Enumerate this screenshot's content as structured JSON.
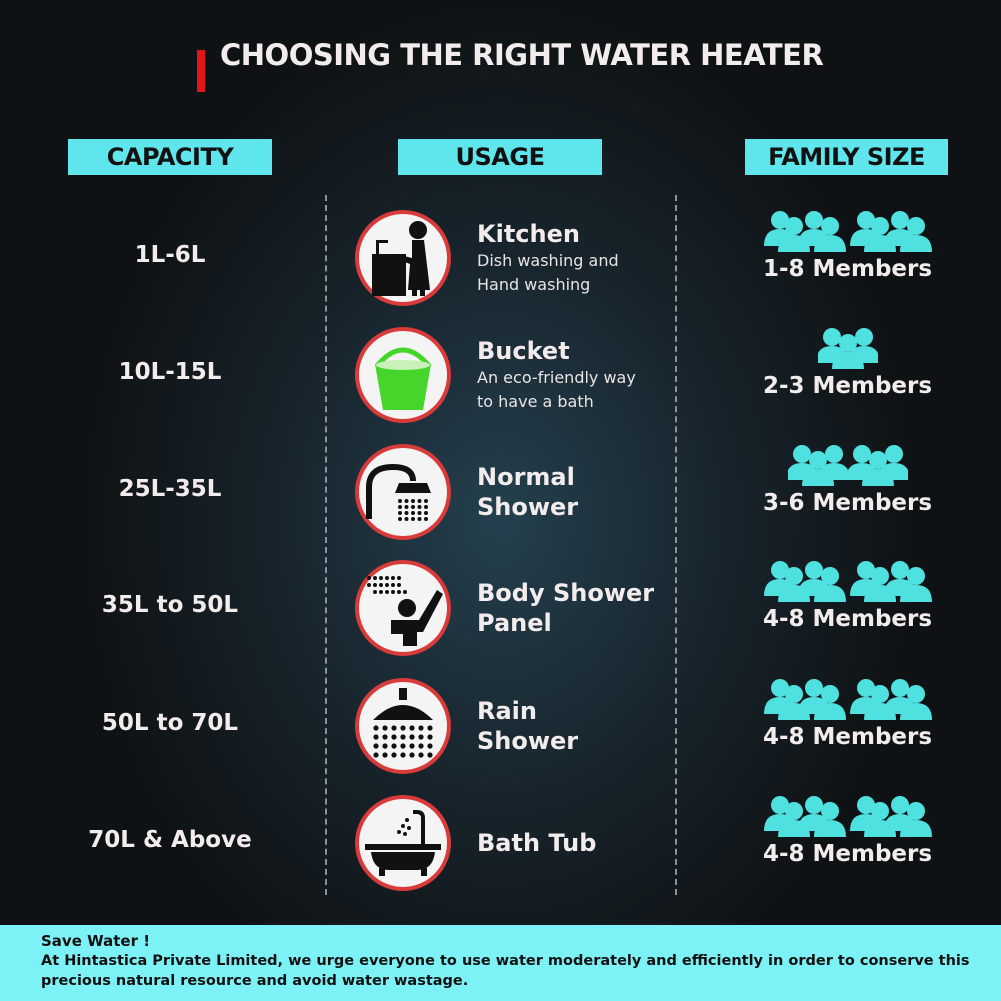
{
  "title": "CHOOSING THE RIGHT WATER HEATER",
  "headers": {
    "capacity": "CAPACITY",
    "usage": "USAGE",
    "family": "FAMILY SIZE"
  },
  "colors": {
    "accent_red": "#e0161b",
    "header_cyan": "#5ee6ec",
    "people_cyan": "#4fe0e0",
    "footer_bg": "#7df2f6"
  },
  "rows": [
    {
      "capacity": "1L-6L",
      "icon": "kitchen-sink-icon",
      "usage_title": "Kitchen",
      "usage_desc": [
        "Dish washing and",
        "Hand washing"
      ],
      "people_count": 8,
      "members": "1-8 Members"
    },
    {
      "capacity": "10L-15L",
      "icon": "bucket-icon",
      "usage_title": "Bucket",
      "usage_desc": [
        "An eco-friendly way",
        "to have a bath"
      ],
      "people_count": 3,
      "members": "2-3 Members"
    },
    {
      "capacity": "25L-35L",
      "icon": "shower-head-icon",
      "usage_title": "Normal",
      "usage_desc": [
        "Shower"
      ],
      "people_count": 6,
      "members": "3-6 Members"
    },
    {
      "capacity": "35L to 50L",
      "icon": "body-shower-icon",
      "usage_title": "Body Shower",
      "usage_desc": [
        "Panel"
      ],
      "people_count": 8,
      "members": "4-8 Members"
    },
    {
      "capacity": "50L to 70L",
      "icon": "rain-shower-icon",
      "usage_title": "Rain",
      "usage_desc": [
        "Shower"
      ],
      "people_count": 8,
      "members": "4-8 Members"
    },
    {
      "capacity": "70L & Above",
      "icon": "bath-tub-icon",
      "usage_title": "Bath Tub",
      "usage_desc": [],
      "people_count": 8,
      "members": "4-8 Members"
    }
  ],
  "footer": {
    "heading": "Save Water !",
    "line1": "At Hintastica Private Limited, we urge everyone to use water moderately and efficiently in order to conserve this",
    "line2": "precious natural resource and avoid water wastage."
  }
}
